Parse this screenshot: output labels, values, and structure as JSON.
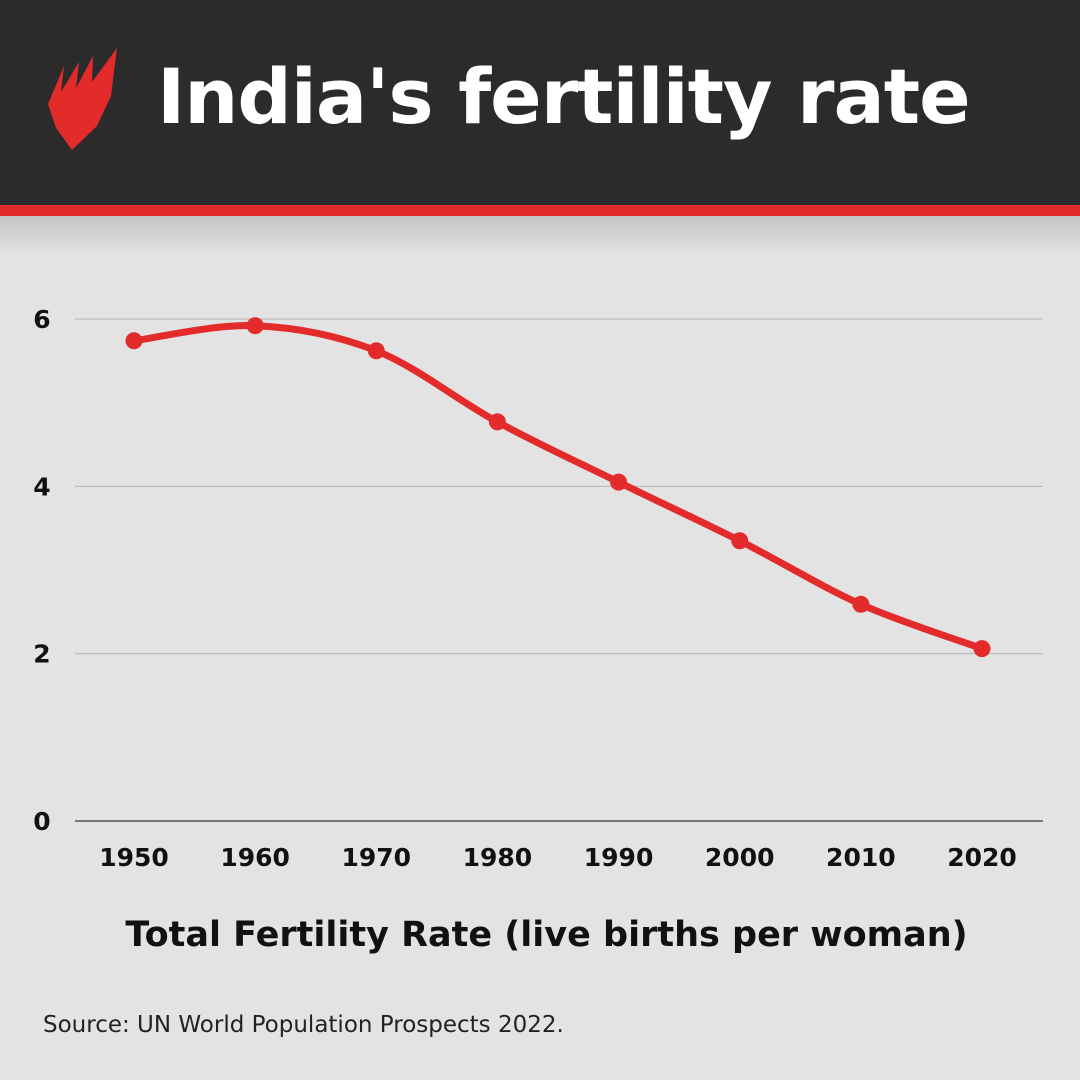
{
  "header": {
    "title": "India's fertility rate",
    "logo": "SBS logo"
  },
  "colors": {
    "header_bg": "#2b2b2b",
    "accent": "#e32b2b",
    "background": "#e3e3e3"
  },
  "chart_data": {
    "type": "line",
    "title": "India's fertility rate",
    "xlabel": "Total Fertility Rate (live births per woman)",
    "ylabel": "",
    "x": [
      1950,
      1960,
      1970,
      1980,
      1990,
      2000,
      2010,
      2020
    ],
    "x_tick_labels": [
      "1950",
      "1960",
      "1970",
      "1980",
      "1990",
      "2000",
      "2010",
      "2020"
    ],
    "y_ticks": [
      0,
      2,
      4,
      6
    ],
    "y_tick_labels": [
      "0",
      "2",
      "4",
      "6"
    ],
    "ylim": [
      0,
      6.2
    ],
    "grid": true,
    "series": [
      {
        "values": [
          5.74,
          5.92,
          5.62,
          4.77,
          4.05,
          3.35,
          2.59,
          2.06
        ],
        "color": "#e32b2b"
      }
    ]
  },
  "footer": {
    "source": "Source: UN World Population Prospects 2022."
  }
}
